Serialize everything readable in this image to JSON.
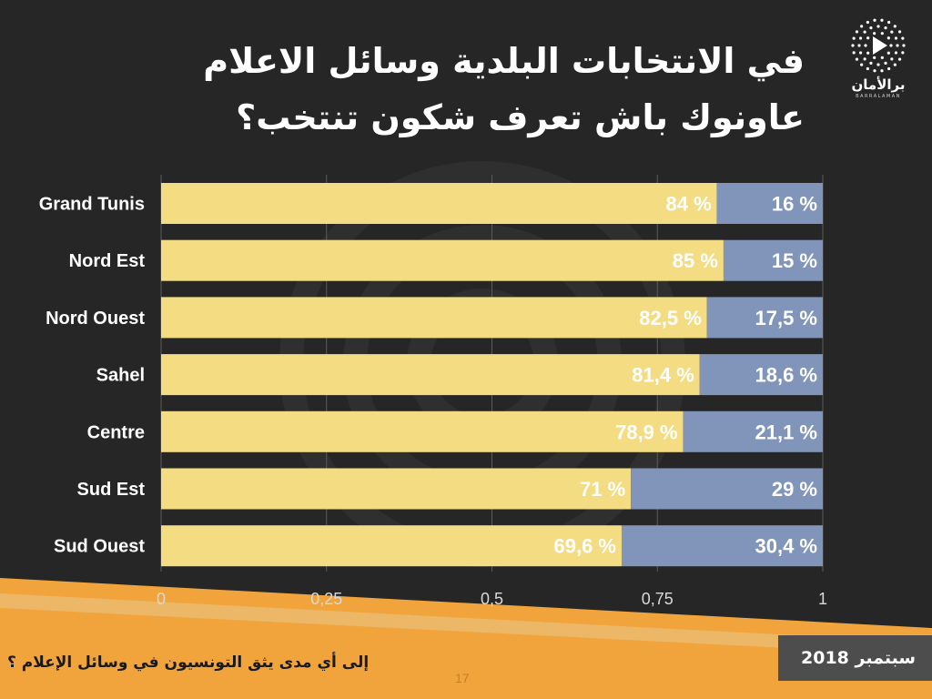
{
  "title": {
    "line1": "في الانتخابات البلدية وسائل الاعلام",
    "line2": "عاونوك باش تعرف شكون تنتخب؟"
  },
  "logo": {
    "name": "برالأمان",
    "sub": "BARRALAMAN"
  },
  "footer": {
    "question": "إلى أي مدى يثق التونسيون في وسائل الإعلام ؟",
    "page": "17",
    "date": "سبتمبر 2018"
  },
  "colors": {
    "background": "#262626",
    "series_yes": "#f3dc82",
    "series_no": "#8095b9",
    "accent_orange": "#f2a43c"
  },
  "chart_data": {
    "type": "bar",
    "orientation": "horizontal",
    "stacked": true,
    "categories": [
      "Grand Tunis",
      "Nord Est",
      "Nord Ouest",
      "Sahel",
      "Centre",
      "Sud Est",
      "Sud Ouest"
    ],
    "series": [
      {
        "values": [
          0.84,
          0.85,
          0.825,
          0.814,
          0.789,
          0.71,
          0.696
        ],
        "labels": [
          "84 %",
          "85 %",
          "82,5 %",
          "81,4 %",
          "78,9 %",
          "71 %",
          "69,6 %"
        ]
      },
      {
        "values": [
          0.16,
          0.15,
          0.175,
          0.186,
          0.211,
          0.29,
          0.304
        ],
        "labels": [
          "16 %",
          "15 %",
          "17,5 %",
          "18,6 %",
          "21,1 %",
          "29 %",
          "30,4 %"
        ]
      }
    ],
    "xlim": [
      0,
      1
    ],
    "xticks": [
      0,
      0.25,
      0.5,
      0.75,
      1
    ],
    "xtick_labels": [
      "0",
      "0,25",
      "0,5",
      "0,75",
      "1"
    ],
    "grid": true,
    "legend": "none"
  }
}
